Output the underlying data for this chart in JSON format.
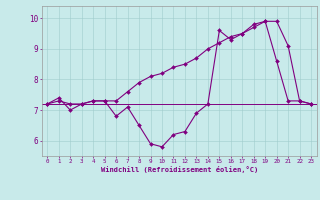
{
  "xlabel": "Windchill (Refroidissement éolien,°C)",
  "hours": [
    0,
    1,
    2,
    3,
    4,
    5,
    6,
    7,
    8,
    9,
    10,
    11,
    12,
    13,
    14,
    15,
    16,
    17,
    18,
    19,
    20,
    21,
    22,
    23
  ],
  "windchill": [
    7.2,
    7.4,
    7.0,
    7.2,
    7.3,
    7.3,
    6.8,
    7.1,
    6.5,
    5.9,
    5.8,
    6.2,
    6.3,
    6.9,
    7.2,
    9.6,
    9.3,
    9.5,
    9.8,
    9.9,
    8.6,
    7.3,
    7.3,
    7.2
  ],
  "temperature": [
    7.2,
    7.3,
    7.2,
    7.2,
    7.3,
    7.3,
    7.3,
    7.6,
    7.9,
    8.1,
    8.2,
    8.4,
    8.5,
    8.7,
    9.0,
    9.2,
    9.4,
    9.5,
    9.7,
    9.9,
    9.9,
    9.1,
    7.3,
    7.2
  ],
  "line_color": "#800080",
  "bg_color": "#c8eaea",
  "ylim_min": 5.5,
  "ylim_max": 10.4,
  "yticks": [
    6,
    7,
    8,
    9,
    10
  ],
  "hline_y": 7.2
}
